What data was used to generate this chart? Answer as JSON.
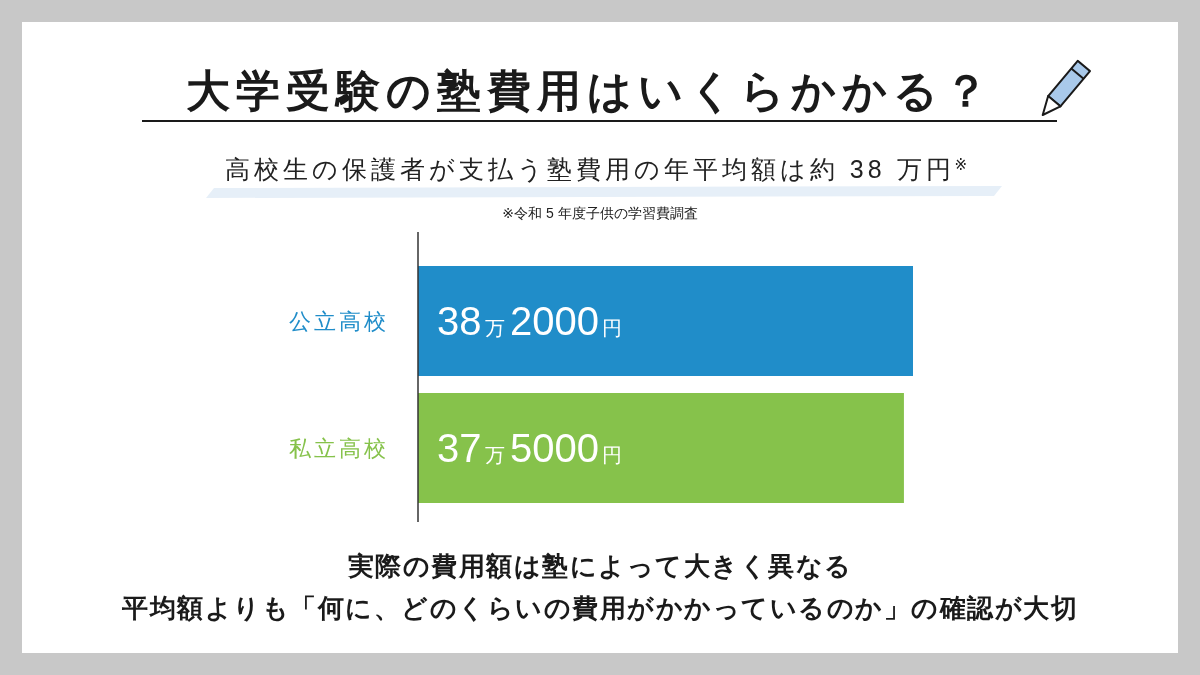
{
  "chart_data": {
    "type": "bar",
    "orientation": "horizontal",
    "title": "大学受験の塾費用はいくらかかる？",
    "subtitle": "高校生の保護者が支払う塾費用の年平均額は約 38 万円$^{※}$",
    "categories": [
      "公立高校",
      "私立高校"
    ],
    "values": [
      38.2,
      37.5
    ],
    "colors": [
      "#208dc9",
      "#86c24b"
    ],
    "value_labels": [
      "38万2000円",
      "37万5000円"
    ],
    "tick_labels": "y",
    "annotations": [
      "※令和 5 年度子供の学習費調査",
      "実際の費用額は塾によって大きく異なる",
      "平均額よりも「何に、どのくらいの費用がかかっているのか」の確認が大切"
    ]
  }
}
